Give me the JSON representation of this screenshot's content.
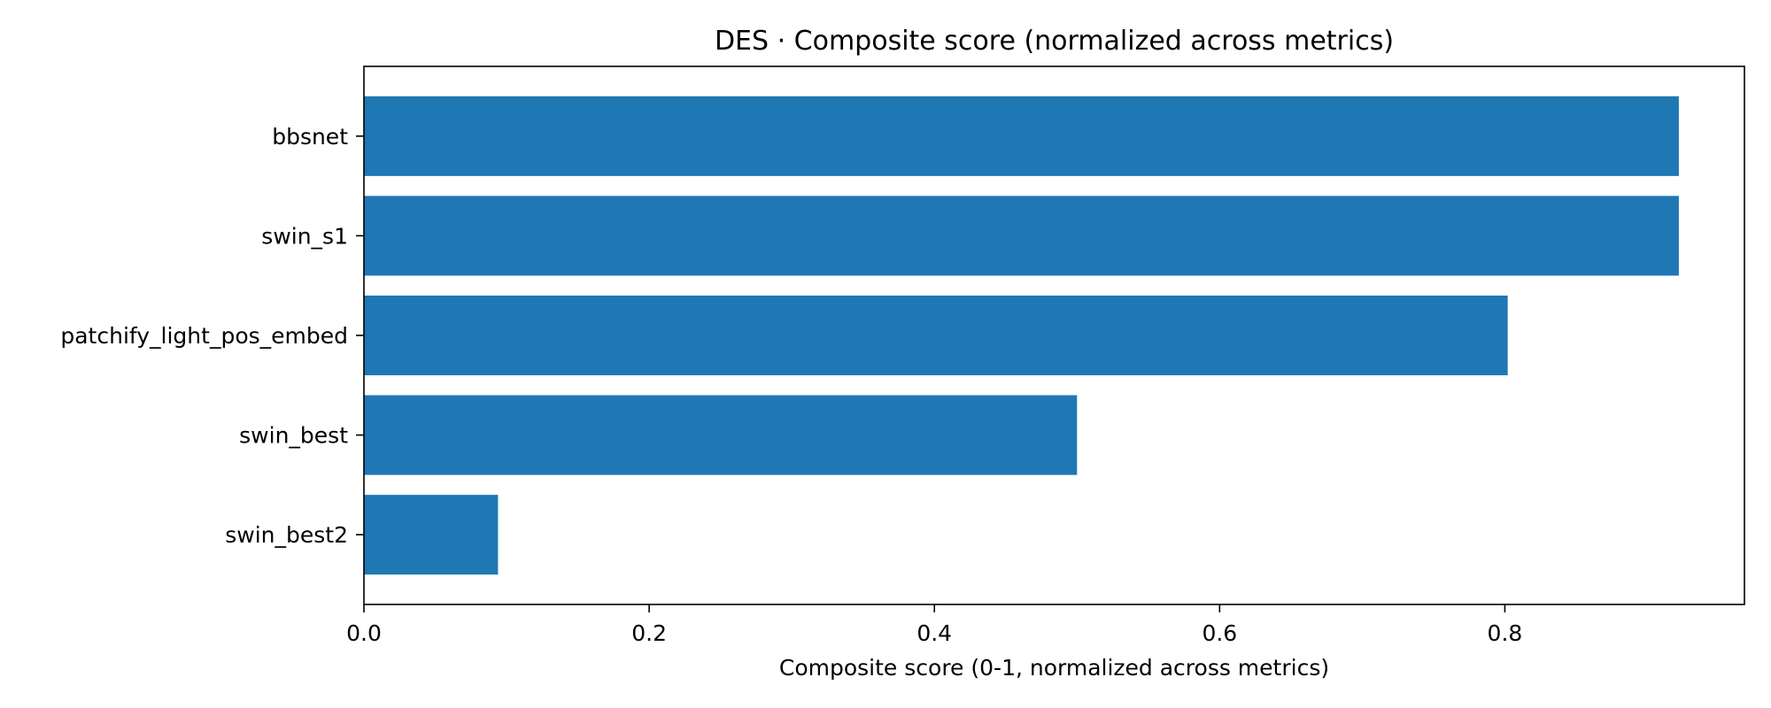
{
  "chart_data": {
    "type": "bar",
    "orientation": "horizontal",
    "title": "DES · Composite score (normalized across metrics)",
    "xlabel": "Composite score (0-1, normalized across metrics)",
    "ylabel": "",
    "categories": [
      "bbsnet",
      "swin_s1",
      "patchify_light_pos_embed",
      "swin_best",
      "swin_best2"
    ],
    "values": [
      0.922,
      0.922,
      0.802,
      0.5,
      0.094
    ],
    "xlim": [
      0,
      0.968
    ],
    "xticks": [
      0.0,
      0.2,
      0.4,
      0.6,
      0.8
    ],
    "xtick_labels": [
      "0.0",
      "0.2",
      "0.4",
      "0.6",
      "0.8"
    ],
    "grid": false,
    "legend": null,
    "bar_color": "#1f77b4"
  }
}
